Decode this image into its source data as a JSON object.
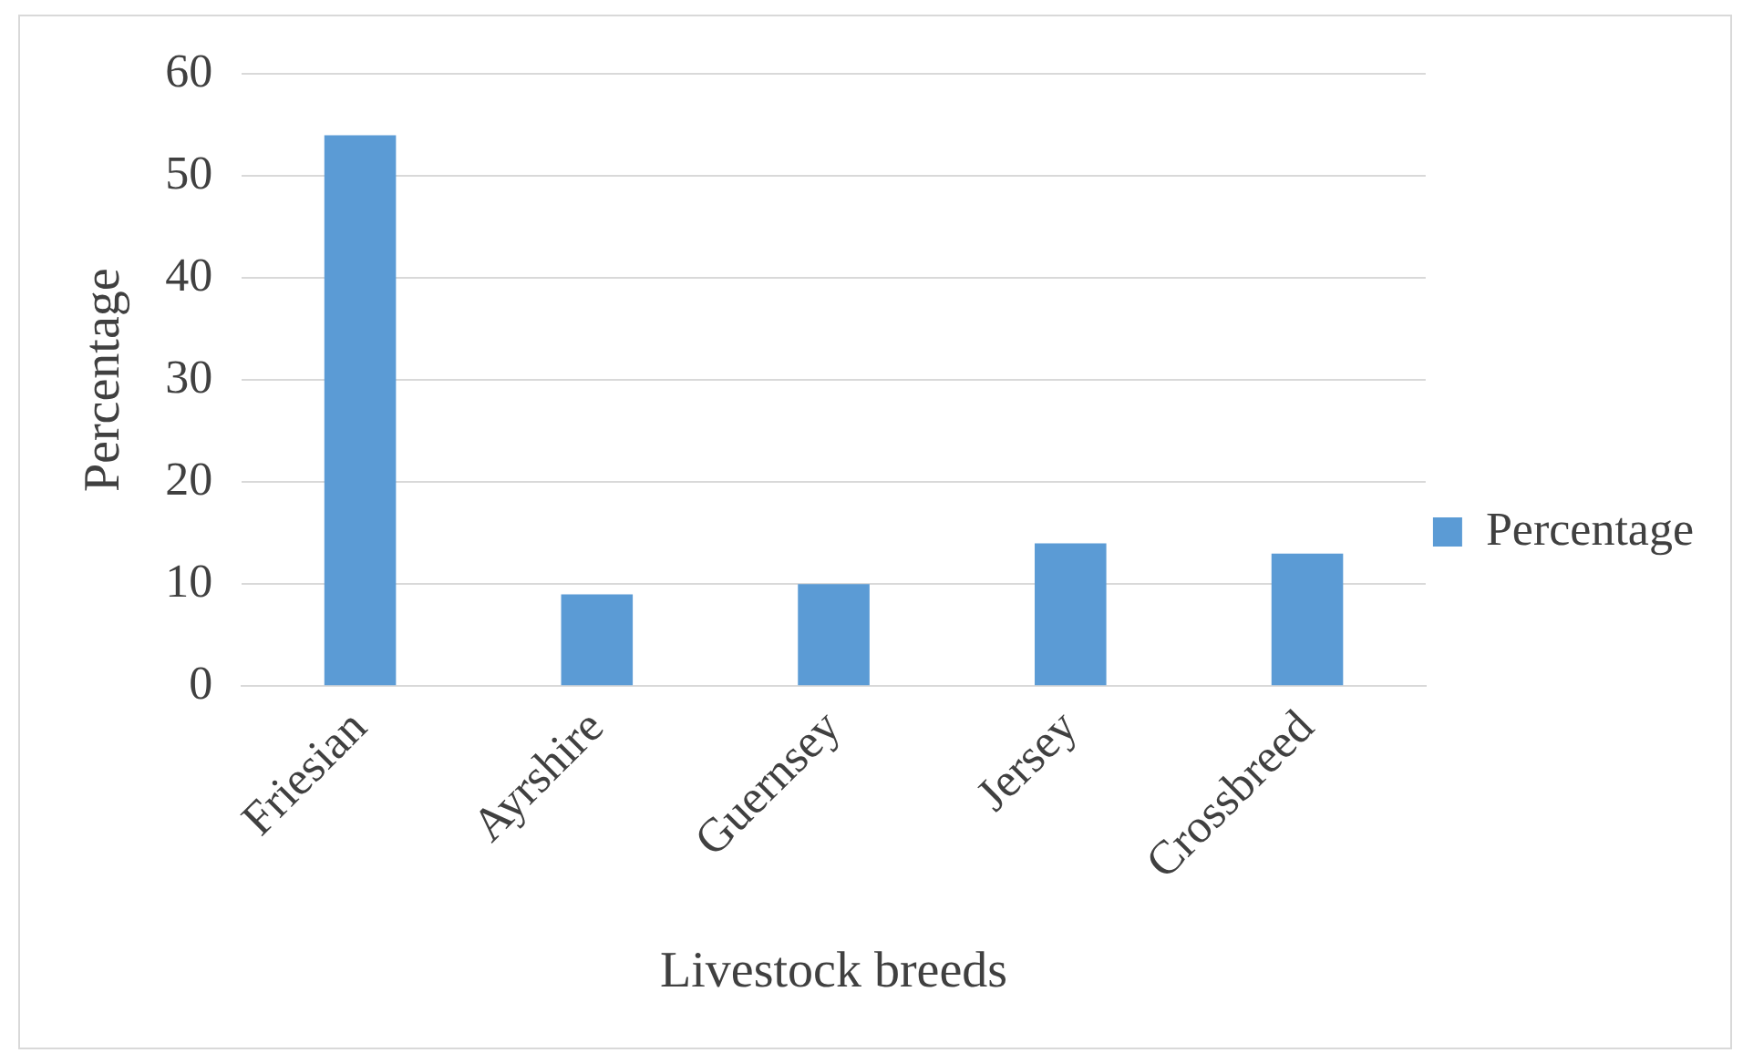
{
  "chart_data": {
    "type": "bar",
    "xlabel": "Livestock breeds",
    "ylabel": "Percentage",
    "categories": [
      "Friesian",
      "Ayrshire",
      "Guernsey",
      "Jersey",
      "Crossbreed"
    ],
    "series": [
      {
        "name": "Percentage",
        "color": "#5b9bd5",
        "values": [
          54,
          9,
          10,
          14,
          13
        ]
      }
    ],
    "ylim": [
      0,
      60
    ],
    "yticks": [
      0,
      10,
      20,
      30,
      40,
      50,
      60
    ],
    "grid": "y",
    "legend": "right"
  }
}
